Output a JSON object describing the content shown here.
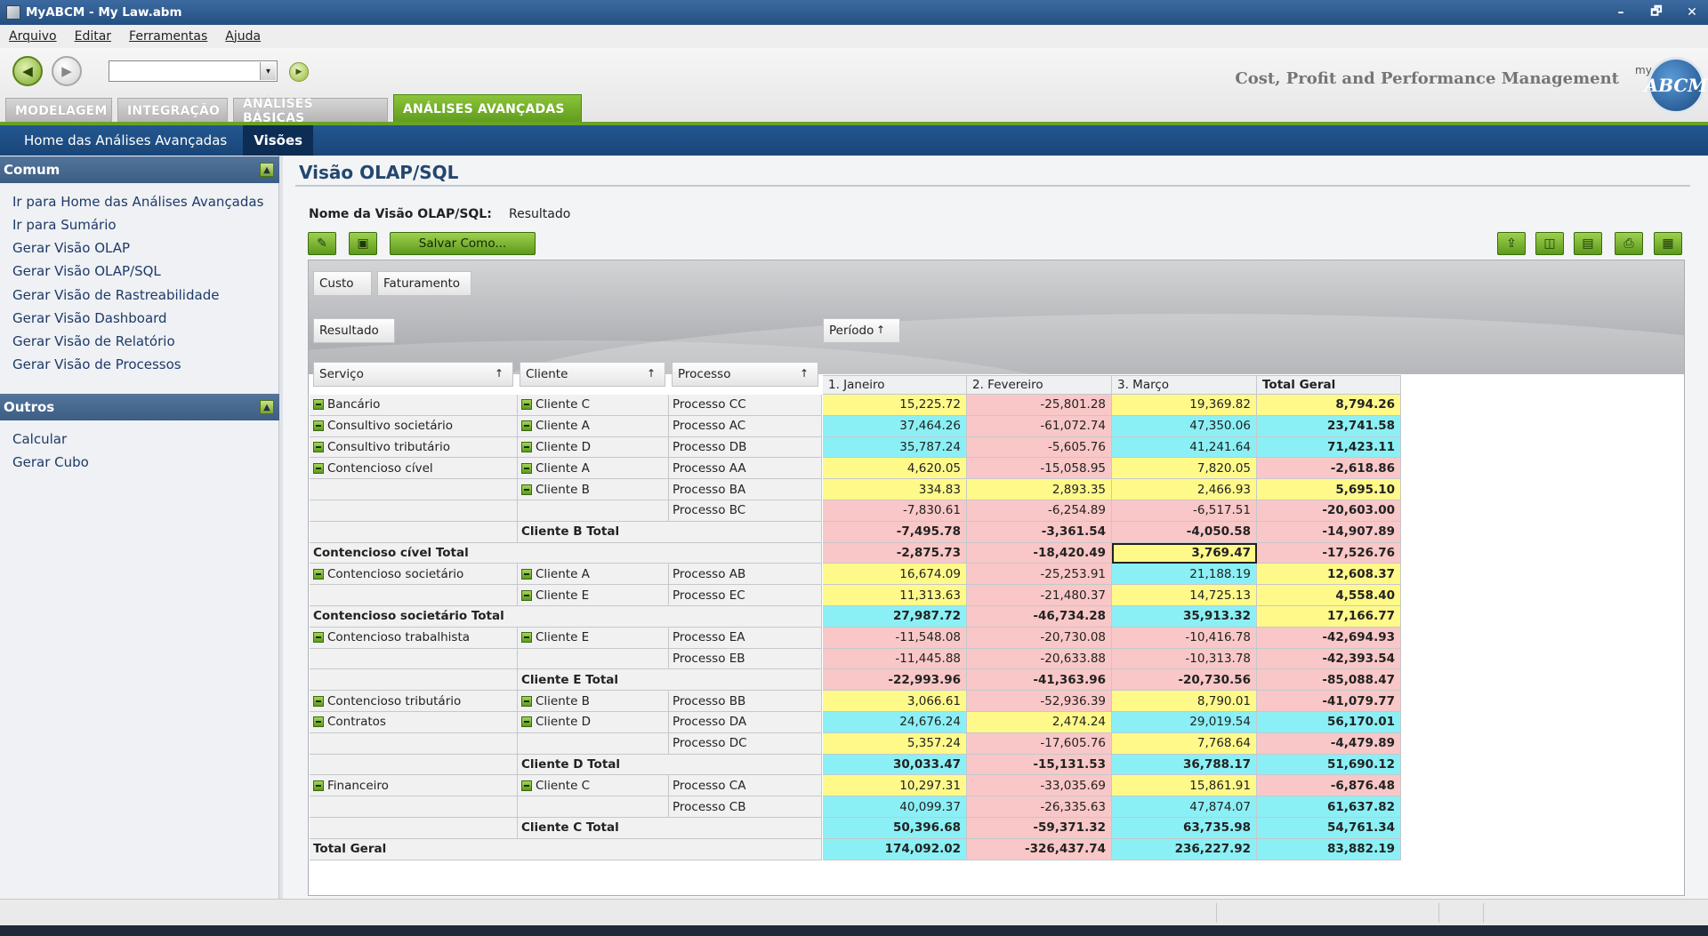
{
  "window": {
    "title": "MyABCM  - My Law.abm",
    "minimize": "–",
    "restore": "🗗",
    "close": "✕"
  },
  "menu": [
    "Arquivo",
    "Editar",
    "Ferramentas",
    "Ajuda"
  ],
  "toolbar": {
    "back": "◀",
    "forward": "▶",
    "go": "▶",
    "slogan": "Cost, Profit and Performance Management",
    "logo_text": "ABCM",
    "logo_prefix": "my",
    "combo_value": "",
    "combo_arrow": "▾"
  },
  "tabs": [
    "MODELAGEM",
    "INTEGRAÇÃO",
    "ANÁLISES BÁSICAS",
    "ANÁLISES AVANÇADAS"
  ],
  "subnav": [
    "Home das Análises Avançadas",
    "Visões"
  ],
  "sidebar": {
    "sections": [
      {
        "title": "Comum",
        "items": [
          "Ir para Home das Análises Avançadas",
          "Ir para Sumário",
          "Gerar Visão OLAP",
          "Gerar Visão OLAP/SQL",
          "Gerar Visão de Rastreabilidade",
          "Gerar Visão Dashboard",
          "Gerar Visão de Relatório",
          "Gerar Visão de Processos"
        ]
      },
      {
        "title": "Outros",
        "items": [
          "Calcular",
          "Gerar Cubo"
        ]
      }
    ],
    "collapse_glyph": "▲"
  },
  "page": {
    "title": "Visão OLAP/SQL",
    "name_label": "Nome da Visão OLAP/SQL:",
    "name_value": "Resultado",
    "save_as": "Salvar Como...",
    "icon_edit": "✎",
    "icon_save": "▣",
    "right_icons": [
      "⇪",
      "◫",
      "▤",
      "⎙",
      "▦"
    ]
  },
  "pivot": {
    "filter_fields": [
      "Custo",
      "Faturamento"
    ],
    "data_field": "Resultado",
    "column_field": "Período",
    "row_fields": [
      "Serviço",
      "Cliente",
      "Processo"
    ],
    "sort_glyph": "↑",
    "columns": [
      "1. Janeiro",
      "2. Fevereiro",
      "3. Março",
      "Total Geral"
    ],
    "rows": [
      {
        "s": "Bancário",
        "c": "Cliente C",
        "p": "Processo CC",
        "v": [
          "15,225.72",
          "-25,801.28",
          "19,369.82",
          "8,794.26"
        ],
        "k": [
          "y",
          "p",
          "y",
          "y"
        ]
      },
      {
        "s": "Consultivo societário",
        "c": "Cliente A",
        "p": "Processo AC",
        "v": [
          "37,464.26",
          "-61,072.74",
          "47,350.06",
          "23,741.58"
        ],
        "k": [
          "c",
          "p",
          "c",
          "c"
        ]
      },
      {
        "s": "Consultivo tributário",
        "c": "Cliente D",
        "p": "Processo DB",
        "v": [
          "35,787.24",
          "-5,605.76",
          "41,241.64",
          "71,423.11"
        ],
        "k": [
          "c",
          "p",
          "c",
          "c"
        ]
      },
      {
        "s": "Contencioso cível",
        "c": "Cliente A",
        "p": "Processo AA",
        "v": [
          "4,620.05",
          "-15,058.95",
          "7,820.05",
          "-2,618.86"
        ],
        "k": [
          "y",
          "p",
          "y",
          "p"
        ]
      },
      {
        "s": "",
        "c": "Cliente B",
        "p": "Processo BA",
        "v": [
          "334.83",
          "2,893.35",
          "2,466.93",
          "5,695.10"
        ],
        "k": [
          "y",
          "y",
          "y",
          "y"
        ]
      },
      {
        "s": "",
        "c": "",
        "p": "Processo BC",
        "v": [
          "-7,830.61",
          "-6,254.89",
          "-6,517.51",
          "-20,603.00"
        ],
        "k": [
          "p",
          "p",
          "p",
          "p"
        ]
      },
      {
        "s": "",
        "c": "Cliente B Total",
        "p": "",
        "t": "c",
        "v": [
          "-7,495.78",
          "-3,361.54",
          "-4,050.58",
          "-14,907.89"
        ],
        "k": [
          "p",
          "p",
          "p",
          "p"
        ]
      },
      {
        "s": "Contencioso cível Total",
        "c": "",
        "p": "",
        "t": "s",
        "v": [
          "-2,875.73",
          "-18,420.49",
          "3,769.47",
          "-17,526.76"
        ],
        "k": [
          "p",
          "p",
          "y",
          "p"
        ]
      },
      {
        "s": "Contencioso societário",
        "c": "Cliente A",
        "p": "Processo AB",
        "v": [
          "16,674.09",
          "-25,253.91",
          "21,188.19",
          "12,608.37"
        ],
        "k": [
          "y",
          "p",
          "c",
          "y"
        ]
      },
      {
        "s": "",
        "c": "Cliente E",
        "p": "Processo EC",
        "v": [
          "11,313.63",
          "-21,480.37",
          "14,725.13",
          "4,558.40"
        ],
        "k": [
          "y",
          "p",
          "y",
          "y"
        ]
      },
      {
        "s": "Contencioso societário Total",
        "c": "",
        "p": "",
        "t": "s",
        "v": [
          "27,987.72",
          "-46,734.28",
          "35,913.32",
          "17,166.77"
        ],
        "k": [
          "c",
          "p",
          "c",
          "y"
        ]
      },
      {
        "s": "Contencioso trabalhista",
        "c": "Cliente E",
        "p": "Processo EA",
        "v": [
          "-11,548.08",
          "-20,730.08",
          "-10,416.78",
          "-42,694.93"
        ],
        "k": [
          "p",
          "p",
          "p",
          "p"
        ]
      },
      {
        "s": "",
        "c": "",
        "p": "Processo EB",
        "v": [
          "-11,445.88",
          "-20,633.88",
          "-10,313.78",
          "-42,393.54"
        ],
        "k": [
          "p",
          "p",
          "p",
          "p"
        ]
      },
      {
        "s": "",
        "c": "Cliente E Total",
        "p": "",
        "t": "c",
        "v": [
          "-22,993.96",
          "-41,363.96",
          "-20,730.56",
          "-85,088.47"
        ],
        "k": [
          "p",
          "p",
          "p",
          "p"
        ]
      },
      {
        "s": "Contencioso tributário",
        "c": "Cliente B",
        "p": "Processo BB",
        "v": [
          "3,066.61",
          "-52,936.39",
          "8,790.01",
          "-41,079.77"
        ],
        "k": [
          "y",
          "p",
          "y",
          "p"
        ]
      },
      {
        "s": "Contratos",
        "c": "Cliente D",
        "p": "Processo DA",
        "v": [
          "24,676.24",
          "2,474.24",
          "29,019.54",
          "56,170.01"
        ],
        "k": [
          "c",
          "y",
          "c",
          "c"
        ]
      },
      {
        "s": "",
        "c": "",
        "p": "Processo DC",
        "v": [
          "5,357.24",
          "-17,605.76",
          "7,768.64",
          "-4,479.89"
        ],
        "k": [
          "y",
          "p",
          "y",
          "p"
        ]
      },
      {
        "s": "",
        "c": "Cliente D Total",
        "p": "",
        "t": "c",
        "v": [
          "30,033.47",
          "-15,131.53",
          "36,788.17",
          "51,690.12"
        ],
        "k": [
          "c",
          "p",
          "c",
          "c"
        ]
      },
      {
        "s": "Financeiro",
        "c": "Cliente C",
        "p": "Processo CA",
        "v": [
          "10,297.31",
          "-33,035.69",
          "15,861.91",
          "-6,876.48"
        ],
        "k": [
          "y",
          "p",
          "y",
          "p"
        ]
      },
      {
        "s": "",
        "c": "",
        "p": "Processo CB",
        "v": [
          "40,099.37",
          "-26,335.63",
          "47,874.07",
          "61,637.82"
        ],
        "k": [
          "c",
          "p",
          "c",
          "c"
        ]
      },
      {
        "s": "",
        "c": "Cliente C Total",
        "p": "",
        "t": "c",
        "v": [
          "50,396.68",
          "-59,371.32",
          "63,735.98",
          "54,761.34"
        ],
        "k": [
          "c",
          "p",
          "c",
          "c"
        ]
      },
      {
        "s": "Total Geral",
        "c": "",
        "p": "",
        "t": "g",
        "v": [
          "174,092.02",
          "-326,437.74",
          "236,227.92",
          "83,882.19"
        ],
        "k": [
          "c",
          "p",
          "c",
          "c"
        ]
      }
    ],
    "selected_cell": {
      "row": 7,
      "col": 2
    }
  }
}
